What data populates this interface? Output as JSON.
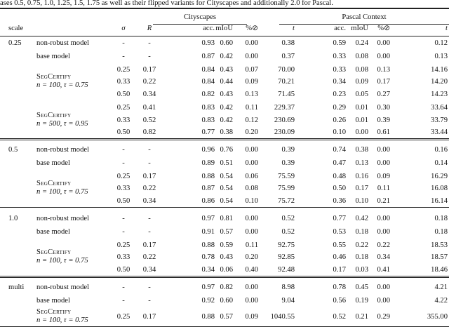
{
  "caption_fragment": "ases 0.5, 0.75, 1.0, 1.25, 1.5, 1.75 as well as their flipped variants for Cityscapes and additionally 2.0 for Pascal.",
  "header": {
    "group_cityscapes": "Cityscapes",
    "group_pascal": "Pascal Context",
    "scale": "scale",
    "sigma": "σ",
    "R": "R",
    "acc": "acc.",
    "miou": "mIoU",
    "abstain": "%⊘",
    "t": "t"
  },
  "sections": [
    {
      "scale": "0.25",
      "entries": [
        {
          "model": "non-robust model",
          "rows": [
            {
              "sigma": "-",
              "R": "-",
              "cs": [
                "0.93",
                "0.60",
                "0.00",
                "0.38"
              ],
              "pc": [
                "0.59",
                "0.24",
                "0.00",
                "0.12"
              ]
            }
          ]
        },
        {
          "model": "base model",
          "rows": [
            {
              "sigma": "-",
              "R": "-",
              "cs": [
                "0.87",
                "0.42",
                "0.00",
                "0.37"
              ],
              "pc": [
                "0.33",
                "0.08",
                "0.00",
                "0.13"
              ]
            }
          ]
        },
        {
          "model": "SegCertify",
          "params": "n = 100, τ = 0.75",
          "rows": [
            {
              "sigma": "0.25",
              "R": "0.17",
              "cs": [
                "0.84",
                "0.43",
                "0.07",
                "70.00"
              ],
              "pc": [
                "0.33",
                "0.08",
                "0.13",
                "14.16"
              ]
            },
            {
              "sigma": "0.33",
              "R": "0.22",
              "cs": [
                "0.84",
                "0.44",
                "0.09",
                "70.21"
              ],
              "pc": [
                "0.34",
                "0.09",
                "0.17",
                "14.20"
              ]
            },
            {
              "sigma": "0.50",
              "R": "0.34",
              "cs": [
                "0.82",
                "0.43",
                "0.13",
                "71.45"
              ],
              "pc": [
                "0.23",
                "0.05",
                "0.27",
                "14.23"
              ]
            }
          ]
        },
        {
          "model": "SegCertify",
          "params": "n = 500, τ = 0.95",
          "rows": [
            {
              "sigma": "0.25",
              "R": "0.41",
              "cs": [
                "0.83",
                "0.42",
                "0.11",
                "229.37"
              ],
              "pc": [
                "0.29",
                "0.01",
                "0.30",
                "33.64"
              ]
            },
            {
              "sigma": "0.33",
              "R": "0.52",
              "cs": [
                "0.83",
                "0.42",
                "0.12",
                "230.69"
              ],
              "pc": [
                "0.26",
                "0.01",
                "0.39",
                "33.79"
              ]
            },
            {
              "sigma": "0.50",
              "R": "0.82",
              "cs": [
                "0.77",
                "0.38",
                "0.20",
                "230.09"
              ],
              "pc": [
                "0.10",
                "0.00",
                "0.61",
                "33.44"
              ]
            }
          ]
        }
      ]
    },
    {
      "scale": "0.5",
      "entries": [
        {
          "model": "non-robust model",
          "rows": [
            {
              "sigma": "-",
              "R": "-",
              "cs": [
                "0.96",
                "0.76",
                "0.00",
                "0.39"
              ],
              "pc": [
                "0.74",
                "0.38",
                "0.00",
                "0.16"
              ]
            }
          ]
        },
        {
          "model": "base model",
          "rows": [
            {
              "sigma": "-",
              "R": "-",
              "cs": [
                "0.89",
                "0.51",
                "0.00",
                "0.39"
              ],
              "pc": [
                "0.47",
                "0.13",
                "0.00",
                "0.14"
              ]
            }
          ]
        },
        {
          "model": "SegCertify",
          "params": "n = 100, τ = 0.75",
          "rows": [
            {
              "sigma": "0.25",
              "R": "0.17",
              "cs": [
                "0.88",
                "0.54",
                "0.06",
                "75.59"
              ],
              "pc": [
                "0.48",
                "0.16",
                "0.09",
                "16.29"
              ]
            },
            {
              "sigma": "0.33",
              "R": "0.22",
              "cs": [
                "0.87",
                "0.54",
                "0.08",
                "75.99"
              ],
              "pc": [
                "0.50",
                "0.17",
                "0.11",
                "16.08"
              ]
            },
            {
              "sigma": "0.50",
              "R": "0.34",
              "cs": [
                "0.86",
                "0.54",
                "0.10",
                "75.72"
              ],
              "pc": [
                "0.36",
                "0.10",
                "0.21",
                "16.14"
              ]
            }
          ]
        }
      ]
    },
    {
      "scale": "1.0",
      "entries": [
        {
          "model": "non-robust model",
          "rows": [
            {
              "sigma": "-",
              "R": "-",
              "cs": [
                "0.97",
                "0.81",
                "0.00",
                "0.52"
              ],
              "pc": [
                "0.77",
                "0.42",
                "0.00",
                "0.18"
              ]
            }
          ]
        },
        {
          "model": "base model",
          "rows": [
            {
              "sigma": "-",
              "R": "-",
              "cs": [
                "0.91",
                "0.57",
                "0.00",
                "0.52"
              ],
              "pc": [
                "0.53",
                "0.18",
                "0.00",
                "0.18"
              ]
            }
          ]
        },
        {
          "model": "SegCertify",
          "params": "n = 100, τ = 0.75",
          "rows": [
            {
              "sigma": "0.25",
              "R": "0.17",
              "cs": [
                "0.88",
                "0.59",
                "0.11",
                "92.75"
              ],
              "pc": [
                "0.55",
                "0.22",
                "0.22",
                "18.53"
              ]
            },
            {
              "sigma": "0.33",
              "R": "0.22",
              "cs": [
                "0.78",
                "0.43",
                "0.20",
                "92.85"
              ],
              "pc": [
                "0.46",
                "0.18",
                "0.34",
                "18.57"
              ]
            },
            {
              "sigma": "0.50",
              "R": "0.34",
              "cs": [
                "0.34",
                "0.06",
                "0.40",
                "92.48"
              ],
              "pc": [
                "0.17",
                "0.03",
                "0.41",
                "18.46"
              ]
            }
          ]
        }
      ]
    },
    {
      "scale": "multi",
      "entries": [
        {
          "model": "non-robust model",
          "rows": [
            {
              "sigma": "-",
              "R": "-",
              "cs": [
                "0.97",
                "0.82",
                "0.00",
                "8.98"
              ],
              "pc": [
                "0.78",
                "0.45",
                "0.00",
                "4.21"
              ]
            }
          ]
        },
        {
          "model": "base model",
          "rows": [
            {
              "sigma": "-",
              "R": "-",
              "cs": [
                "0.92",
                "0.60",
                "0.00",
                "9.04"
              ],
              "pc": [
                "0.56",
                "0.19",
                "0.00",
                "4.22"
              ]
            }
          ]
        },
        {
          "model": "SegCertify",
          "params": "n = 100, τ = 0.75",
          "rows": [
            {
              "sigma": "0.25",
              "R": "0.17",
              "cs": [
                "0.88",
                "0.57",
                "0.09",
                "1040.55"
              ],
              "pc": [
                "0.52",
                "0.21",
                "0.29",
                "355.00"
              ]
            }
          ]
        }
      ]
    }
  ]
}
